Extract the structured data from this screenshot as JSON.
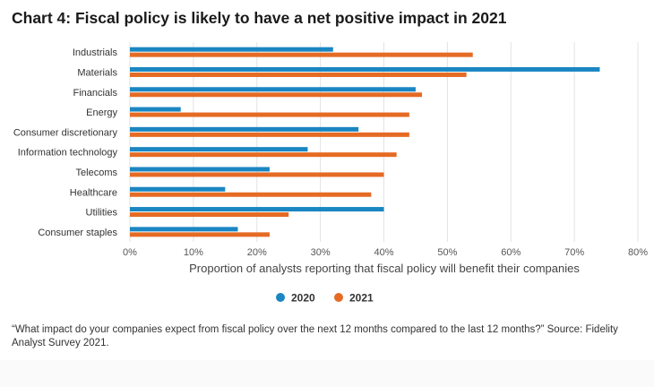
{
  "chart_data": {
    "type": "bar",
    "orientation": "horizontal",
    "title": "Chart 4: Fiscal policy is likely to have a net positive impact in 2021",
    "xlabel": "Proportion of analysts reporting that fiscal policy will benefit their companies",
    "ylabel": "",
    "xlim": [
      0,
      80
    ],
    "xticks": [
      "0%",
      "10%",
      "20%",
      "30%",
      "40%",
      "50%",
      "60%",
      "70%",
      "80%"
    ],
    "grid": "vertical",
    "legend_position": "bottom-center",
    "categories": [
      "Industrials",
      "Materials",
      "Financials",
      "Energy",
      "Consumer discretionary",
      "Information technology",
      "Telecoms",
      "Healthcare",
      "Utilities",
      "Consumer staples"
    ],
    "series": [
      {
        "name": "2020",
        "color": "#1a86c2",
        "values": [
          32,
          74,
          45,
          8,
          36,
          28,
          22,
          15,
          40,
          17
        ]
      },
      {
        "name": "2021",
        "color": "#e56b24",
        "values": [
          54,
          53,
          46,
          44,
          44,
          42,
          40,
          38,
          25,
          22
        ]
      }
    ]
  },
  "source_note": "“What impact do your companies expect from fiscal policy over the next 12 months compared to the last 12 months?” Source: Fidelity Analyst Survey 2021."
}
